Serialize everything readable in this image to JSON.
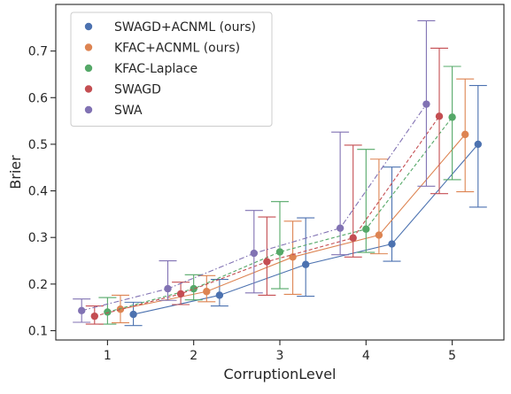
{
  "chart_data": {
    "type": "scatter",
    "title": "",
    "xlabel": "CorruptionLevel",
    "ylabel": "Brier",
    "categories": [
      "1",
      "2",
      "3",
      "4",
      "5"
    ],
    "x": [
      1,
      2,
      3,
      4,
      5
    ],
    "xlim": [
      0.4,
      5.6
    ],
    "ylim": [
      0.08,
      0.8
    ],
    "yticks": [
      "0.1",
      "0.2",
      "0.3",
      "0.4",
      "0.5",
      "0.6",
      "0.7"
    ],
    "legend_position": "top-left",
    "grid": false,
    "series": [
      {
        "name": "SWAGD+ACNML (ours)",
        "color": "#4c72b0",
        "line": "solid",
        "offset": 0.3,
        "values": [
          0.135,
          0.176,
          0.242,
          0.286,
          0.5
        ],
        "err_low": [
          0.111,
          0.153,
          0.174,
          0.249,
          0.365
        ],
        "err_high": [
          0.161,
          0.21,
          0.342,
          0.451,
          0.626
        ]
      },
      {
        "name": "KFAC+ACNML (ours)",
        "color": "#dd8452",
        "line": "solid",
        "offset": 0.15,
        "values": [
          0.146,
          0.184,
          0.258,
          0.305,
          0.521
        ],
        "err_low": [
          0.117,
          0.162,
          0.178,
          0.265,
          0.398
        ],
        "err_high": [
          0.176,
          0.218,
          0.335,
          0.468,
          0.64
        ]
      },
      {
        "name": "KFAC-Laplace",
        "color": "#55a868",
        "line": "dashed",
        "offset": 0.0,
        "values": [
          0.14,
          0.19,
          0.269,
          0.318,
          0.558
        ],
        "err_low": [
          0.114,
          0.166,
          0.19,
          0.268,
          0.424
        ],
        "err_high": [
          0.171,
          0.22,
          0.377,
          0.489,
          0.667
        ]
      },
      {
        "name": "SWAGD",
        "color": "#c44e52",
        "line": "dashed",
        "offset": -0.15,
        "values": [
          0.131,
          0.179,
          0.248,
          0.299,
          0.56
        ],
        "err_low": [
          0.114,
          0.156,
          0.176,
          0.258,
          0.394
        ],
        "err_high": [
          0.153,
          0.204,
          0.344,
          0.498,
          0.706
        ]
      },
      {
        "name": "SWA",
        "color": "#8172b3",
        "line": "dashdot",
        "offset": -0.3,
        "values": [
          0.143,
          0.19,
          0.266,
          0.32,
          0.586
        ],
        "err_low": [
          0.118,
          0.165,
          0.181,
          0.263,
          0.41
        ],
        "err_high": [
          0.168,
          0.25,
          0.358,
          0.526,
          0.765
        ]
      }
    ]
  }
}
